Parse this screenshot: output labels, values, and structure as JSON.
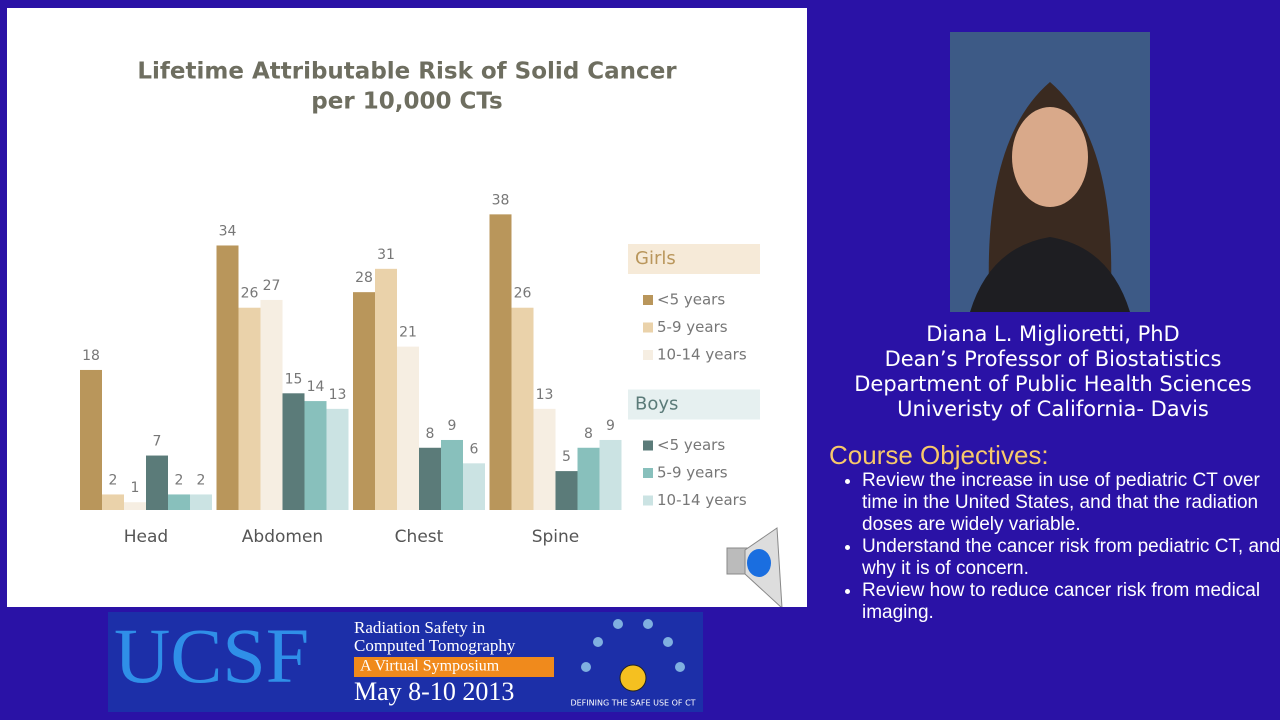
{
  "chart_data": {
    "type": "bar",
    "title": "Lifetime Attributable Risk of Solid Cancer",
    "subtitle": "per 10,000 CTs",
    "categories": [
      "Head",
      "Abdomen",
      "Chest",
      "Spine"
    ],
    "legend_groups": [
      "Girls",
      "Boys"
    ],
    "series": [
      {
        "name": "<5 years",
        "color": "#b9965b",
        "values": [
          18,
          34,
          28,
          38
        ]
      },
      {
        "name": "5-9 years",
        "color": "#ead2aa",
        "values": [
          2,
          26,
          31,
          26
        ]
      },
      {
        "name": "10-14 years",
        "color": "#f6eee2",
        "values": [
          1,
          27,
          21,
          13
        ]
      },
      {
        "name": "<5 years",
        "color": "#5b7b79",
        "values": [
          7,
          15,
          8,
          5
        ]
      },
      {
        "name": "5-9 years",
        "color": "#88c0bc",
        "values": [
          2,
          14,
          9,
          8
        ]
      },
      {
        "name": "10-14 years",
        "color": "#cbe3e3",
        "values": [
          2,
          13,
          6,
          9
        ]
      }
    ]
  },
  "presenter": {
    "name": "Diana L. Miglioretti, PhD",
    "title": "Dean’s Professor of Biostatistics",
    "department": "Department of Public Health Sciences",
    "institution": "Univeristy of California- Davis"
  },
  "objectives": {
    "heading": "Course Objectives:",
    "items": [
      "Review the increase in use of pediatric CT over time in the United States, and that the radiation doses are widely variable.",
      "Understand the cancer risk from pediatric CT, and why it is of concern.",
      "Review how to reduce cancer risk from medical imaging."
    ]
  },
  "banner": {
    "logo": "UCSF",
    "line1": "Radiation Safety in",
    "line2": "Computed Tomography",
    "line3": "A Virtual Symposium",
    "dates": "May 8-10 2013",
    "tagline": "DEFINING THE SAFE USE OF CT"
  }
}
